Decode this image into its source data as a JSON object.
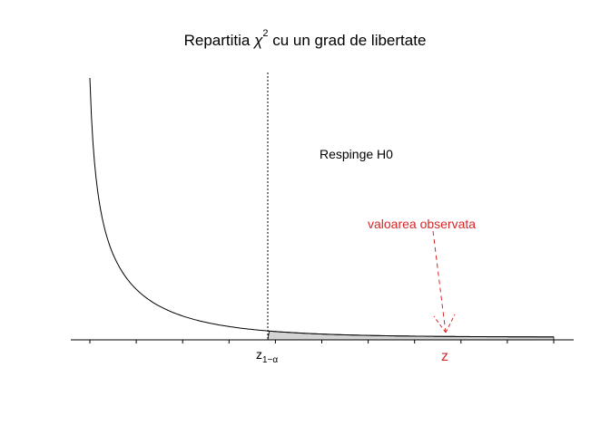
{
  "chart_data": {
    "type": "line",
    "title_main": "Repartitia",
    "title_symbol": "χ",
    "title_superscript": "2",
    "title_rest": "cu un grad de libertate",
    "distribution": "chi-square",
    "degrees_of_freedom": 1,
    "rejection_region_label": "Respinge H0",
    "observed_value_label": "valoarea observata",
    "critical_label": "z",
    "critical_subscript": "1−α",
    "observed_label": "z",
    "grid": false,
    "legend": "none"
  },
  "colors": {
    "curve": "#000000",
    "shade": "#d3d3d3",
    "observed": "#d62728",
    "axis": "#000000"
  }
}
